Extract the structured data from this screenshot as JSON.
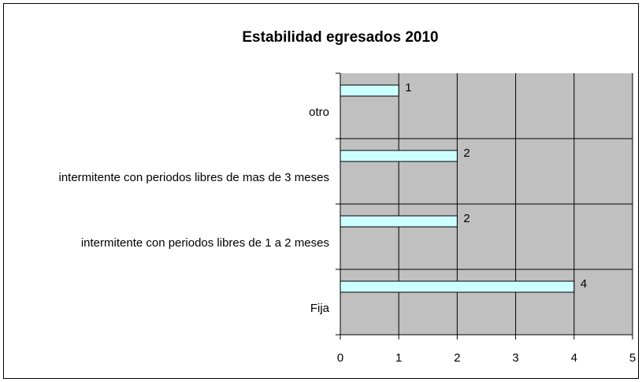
{
  "chart_data": {
    "type": "bar",
    "orientation": "horizontal",
    "title": "Estabilidad egresados 2010",
    "categories": [
      "Fija",
      "intermitente con periodos libres de 1 a 2 meses",
      "intermitente con periodos libres de mas de 3 meses",
      "otro"
    ],
    "values": [
      4,
      2,
      2,
      1
    ],
    "color": "#ccffff",
    "background": "#c0c0c0",
    "xlim": [
      0,
      5
    ],
    "xticks": [
      0,
      1,
      2,
      3,
      4,
      5
    ],
    "grid": true
  }
}
